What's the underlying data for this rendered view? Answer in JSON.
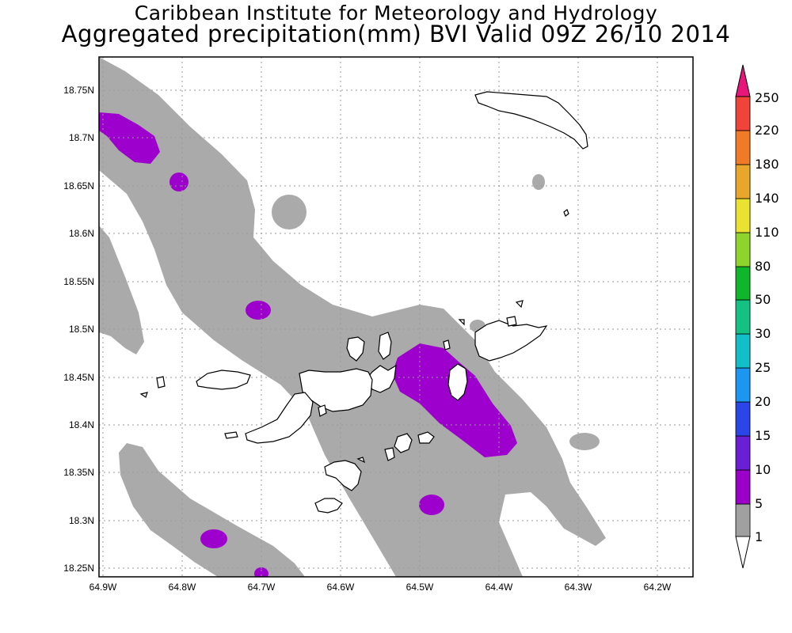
{
  "title": {
    "line1": "Caribbean Institute for Meteorology and Hydrology",
    "line2": "Aggregated precipitation(mm) BVI Valid 09Z 26/10 2014"
  },
  "map": {
    "lat_ticks": [
      "18.75N",
      "18.7N",
      "18.65N",
      "18.6N",
      "18.55N",
      "18.5N",
      "18.45N",
      "18.4N",
      "18.35N",
      "18.3N",
      "18.25N"
    ],
    "lon_ticks": [
      "64.9W",
      "64.8W",
      "64.7W",
      "64.6W",
      "64.5W",
      "64.4W",
      "64.3W",
      "64.2W"
    ],
    "grid": true,
    "colors": {
      "gray": "#aaaaaa",
      "purple": "#9d00cc"
    }
  },
  "colorbar": {
    "levels": [
      "1",
      "5",
      "10",
      "15",
      "20",
      "25",
      "30",
      "50",
      "80",
      "110",
      "140",
      "180",
      "220",
      "250"
    ],
    "colors": [
      "#ffffff",
      "#a0a0a0",
      "#9a00c8",
      "#6a1fd6",
      "#2b45e8",
      "#1c96f0",
      "#12bfc8",
      "#15c083",
      "#0fb52a",
      "#8ed42c",
      "#eae231",
      "#e8a62a",
      "#f07a28",
      "#f0443a",
      "#e8167a"
    ]
  }
}
